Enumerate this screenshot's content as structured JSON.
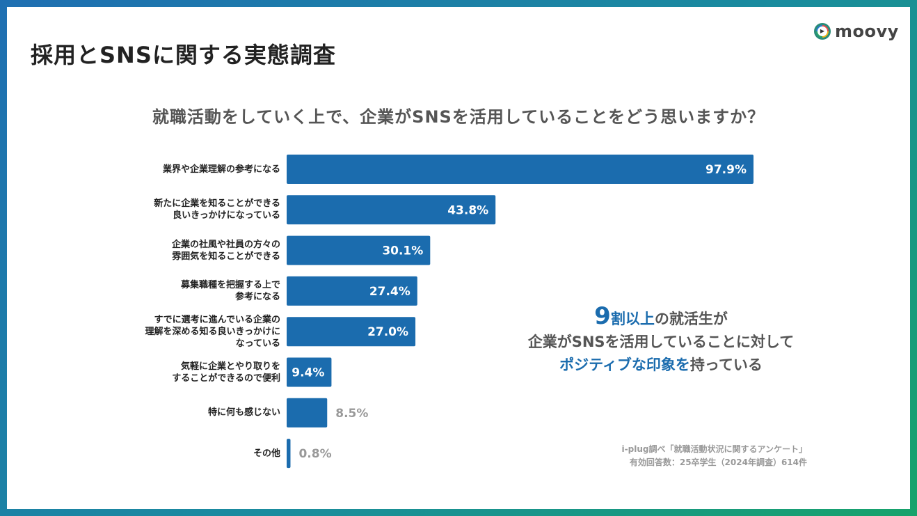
{
  "header": {
    "title": "採用とSNSに関する実態調査",
    "logo_text": "moovy",
    "logo_icon": "play-circle-icon"
  },
  "question": "就職活動をしていく上で、企業がSNSを活用していることをどう思いますか？",
  "callout": {
    "number": "9",
    "highlight1": "割以上",
    "rest1": "の就活生が",
    "line2": "企業がSNSを活用していることに対して",
    "highlight3a": "ポジティブな印象",
    "mid3": "を",
    "rest3": "持っている"
  },
  "source": {
    "line1": "i-plug調べ「就職活動状況に関するアンケート」",
    "line2": "有効回答数：25卒学生（2024年調査）614件"
  },
  "colors": {
    "bar": "#1b6cae",
    "accent": "#1b6cae",
    "label_outside": "#999999"
  },
  "chart_data": {
    "type": "bar",
    "orientation": "horizontal",
    "categories": [
      "業界や企業理解の参考になる",
      "新たに企業を知ることができる\n良いきっかけになっている",
      "企業の社風や社員の方々の\n雰囲気を知ることができる",
      "募集職種を把握する上で\n参考になる",
      "すでに選考に進んでいる企業の\n理解を深める知る良いきっかけに\nなっている",
      "気軽に企業とやり取りを\nすることができるので便利",
      "特に何も感じない",
      "その他"
    ],
    "values": [
      97.9,
      43.8,
      30.1,
      27.4,
      27.0,
      9.4,
      8.5,
      0.8
    ],
    "data_labels": [
      "97.9%",
      "43.8%",
      "30.1%",
      "27.4%",
      "27.0%",
      "9.4%",
      "8.5%",
      "0.8%"
    ],
    "xlim": [
      0,
      100
    ],
    "grid": false
  }
}
